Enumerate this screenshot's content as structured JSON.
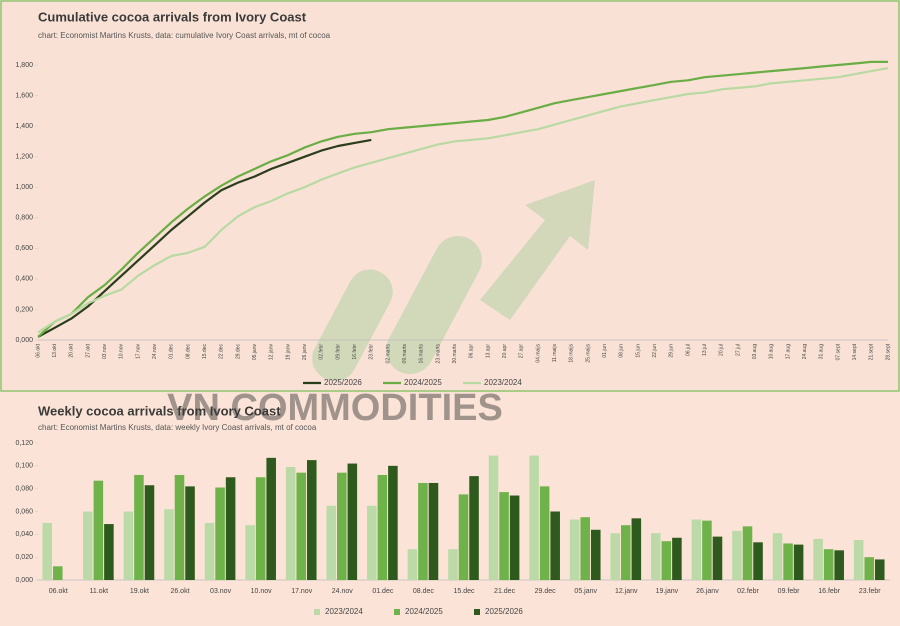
{
  "watermark": "VN COMMODITIES",
  "chart_data": [
    {
      "type": "line",
      "title": "Cumulative cocoa arrivals from Ivory Coast",
      "subtitle": "chart: Economist Martins Krusts, data: cumulative Ivory Coast arrivals, mt of cocoa",
      "categories": [
        "06.okt",
        "13.okt",
        "20.okt",
        "27.okt",
        "03.nov",
        "10.nov",
        "17.nov",
        "24.nov",
        "01.dec",
        "08.dec",
        "15.dec",
        "22.dec",
        "29.dec",
        "05.janv",
        "12.janv",
        "19.janv",
        "26.janv",
        "02.febr",
        "09.febr",
        "16.febr",
        "23.febr",
        "02.marts",
        "09.marts",
        "16.marts",
        "23.marts",
        "30.marts",
        "06.apr",
        "13.apr",
        "20.apr",
        "27.apr",
        "04.maijs",
        "11.maijs",
        "18.maijs",
        "25.maijs",
        "01.jun",
        "08.jun",
        "15.jun",
        "22.jun",
        "29.jun",
        "06.jul",
        "13.jul",
        "20.jul",
        "27.jul",
        "03.aug",
        "10.aug",
        "17.aug",
        "24.aug",
        "31.aug",
        "07.sept",
        "14.sept",
        "21.sept",
        "28.sept"
      ],
      "series": [
        {
          "name": "2025/2026",
          "color": "#2b3d1c",
          "values": [
            0.02,
            0.08,
            0.14,
            0.22,
            0.32,
            0.42,
            0.52,
            0.62,
            0.72,
            0.81,
            0.9,
            0.98,
            1.03,
            1.07,
            1.12,
            1.16,
            1.2,
            1.24,
            1.27,
            1.29,
            1.31,
            null,
            null,
            null,
            null,
            null,
            null,
            null,
            null,
            null,
            null,
            null,
            null,
            null,
            null,
            null,
            null,
            null,
            null,
            null,
            null,
            null,
            null,
            null,
            null,
            null,
            null,
            null,
            null,
            null,
            null,
            null
          ]
        },
        {
          "name": "2024/2025",
          "color": "#6aad45",
          "values": [
            0.02,
            0.12,
            0.17,
            0.28,
            0.36,
            0.46,
            0.57,
            0.67,
            0.77,
            0.86,
            0.94,
            1.01,
            1.07,
            1.12,
            1.17,
            1.21,
            1.26,
            1.3,
            1.33,
            1.35,
            1.36,
            1.38,
            1.39,
            1.4,
            1.41,
            1.42,
            1.43,
            1.44,
            1.46,
            1.49,
            1.52,
            1.55,
            1.57,
            1.59,
            1.61,
            1.63,
            1.65,
            1.67,
            1.69,
            1.7,
            1.72,
            1.73,
            1.74,
            1.75,
            1.76,
            1.77,
            1.78,
            1.79,
            1.8,
            1.81,
            1.82,
            1.82
          ]
        },
        {
          "name": "2023/2024",
          "color": "#b9d9a3",
          "values": [
            0.05,
            0.12,
            0.17,
            0.24,
            0.29,
            0.33,
            0.42,
            0.49,
            0.55,
            0.57,
            0.61,
            0.72,
            0.81,
            0.87,
            0.91,
            0.96,
            1.0,
            1.05,
            1.09,
            1.13,
            1.16,
            1.19,
            1.22,
            1.25,
            1.28,
            1.3,
            1.31,
            1.32,
            1.34,
            1.36,
            1.38,
            1.41,
            1.44,
            1.47,
            1.5,
            1.53,
            1.55,
            1.57,
            1.59,
            1.61,
            1.62,
            1.64,
            1.65,
            1.66,
            1.68,
            1.69,
            1.7,
            1.71,
            1.72,
            1.74,
            1.76,
            1.78
          ]
        }
      ],
      "ylim": [
        0,
        1.8
      ],
      "yticks": [
        {
          "value": 0,
          "label": "0,000"
        },
        {
          "value": 0.2,
          "label": "0,200"
        },
        {
          "value": 0.4,
          "label": "0,400"
        },
        {
          "value": 0.6,
          "label": "0,600"
        },
        {
          "value": 0.8,
          "label": "0,800"
        },
        {
          "value": 1.0,
          "label": "1,000"
        },
        {
          "value": 1.2,
          "label": "1,200"
        },
        {
          "value": 1.4,
          "label": "1,400"
        },
        {
          "value": 1.6,
          "label": "1,600"
        },
        {
          "value": 1.8,
          "label": "1,800"
        }
      ],
      "grid": false,
      "legend": "bottom"
    },
    {
      "type": "bar",
      "title": "Weekly cocoa arrivals from Ivory Coast",
      "subtitle": "chart: Economist Martins Krusts, data: weekly Ivory Coast arrivals, mt of cocoa",
      "categories": [
        "06.okt",
        "11.okt",
        "19.okt",
        "26.okt",
        "03.nov",
        "10.nov",
        "17.nov",
        "24.nov",
        "01.dec",
        "08.dec",
        "15.dec",
        "21.dec",
        "29.dec",
        "05.janv",
        "12.janv",
        "19.janv",
        "26.janv",
        "02.febr",
        "09.febr",
        "16.febr",
        "23.febr"
      ],
      "series": [
        {
          "name": "2023/2024",
          "color": "#bcdaa8",
          "values": [
            0.05,
            0.06,
            0.06,
            0.062,
            0.05,
            0.048,
            0.099,
            0.065,
            0.065,
            0.027,
            0.027,
            0.109,
            0.109,
            0.053,
            0.041,
            0.041,
            0.053,
            0.043,
            0.041,
            0.036,
            0.035
          ]
        },
        {
          "name": "2024/2025",
          "color": "#6fb24a",
          "values": [
            0.012,
            0.087,
            0.092,
            0.092,
            0.081,
            0.09,
            0.094,
            0.094,
            0.092,
            0.085,
            0.075,
            0.077,
            0.082,
            0.055,
            0.048,
            0.034,
            0.052,
            0.047,
            0.032,
            0.027,
            0.02
          ]
        },
        {
          "name": "2025/2026",
          "color": "#2f5a1d",
          "values": [
            null,
            0.049,
            0.083,
            0.082,
            0.09,
            0.107,
            0.105,
            0.102,
            0.1,
            0.085,
            0.091,
            0.074,
            0.06,
            0.044,
            0.054,
            0.037,
            0.038,
            0.033,
            0.031,
            0.026,
            0.018
          ]
        }
      ],
      "ylim": [
        0,
        0.12
      ],
      "yticks": [
        {
          "value": 0,
          "label": "0,000"
        },
        {
          "value": 0.02,
          "label": "0,020"
        },
        {
          "value": 0.04,
          "label": "0,040"
        },
        {
          "value": 0.06,
          "label": "0,060"
        },
        {
          "value": 0.08,
          "label": "0,080"
        },
        {
          "value": 0.1,
          "label": "0,100"
        },
        {
          "value": 0.12,
          "label": "0,120"
        }
      ],
      "grid": false,
      "legend": "bottom"
    }
  ]
}
